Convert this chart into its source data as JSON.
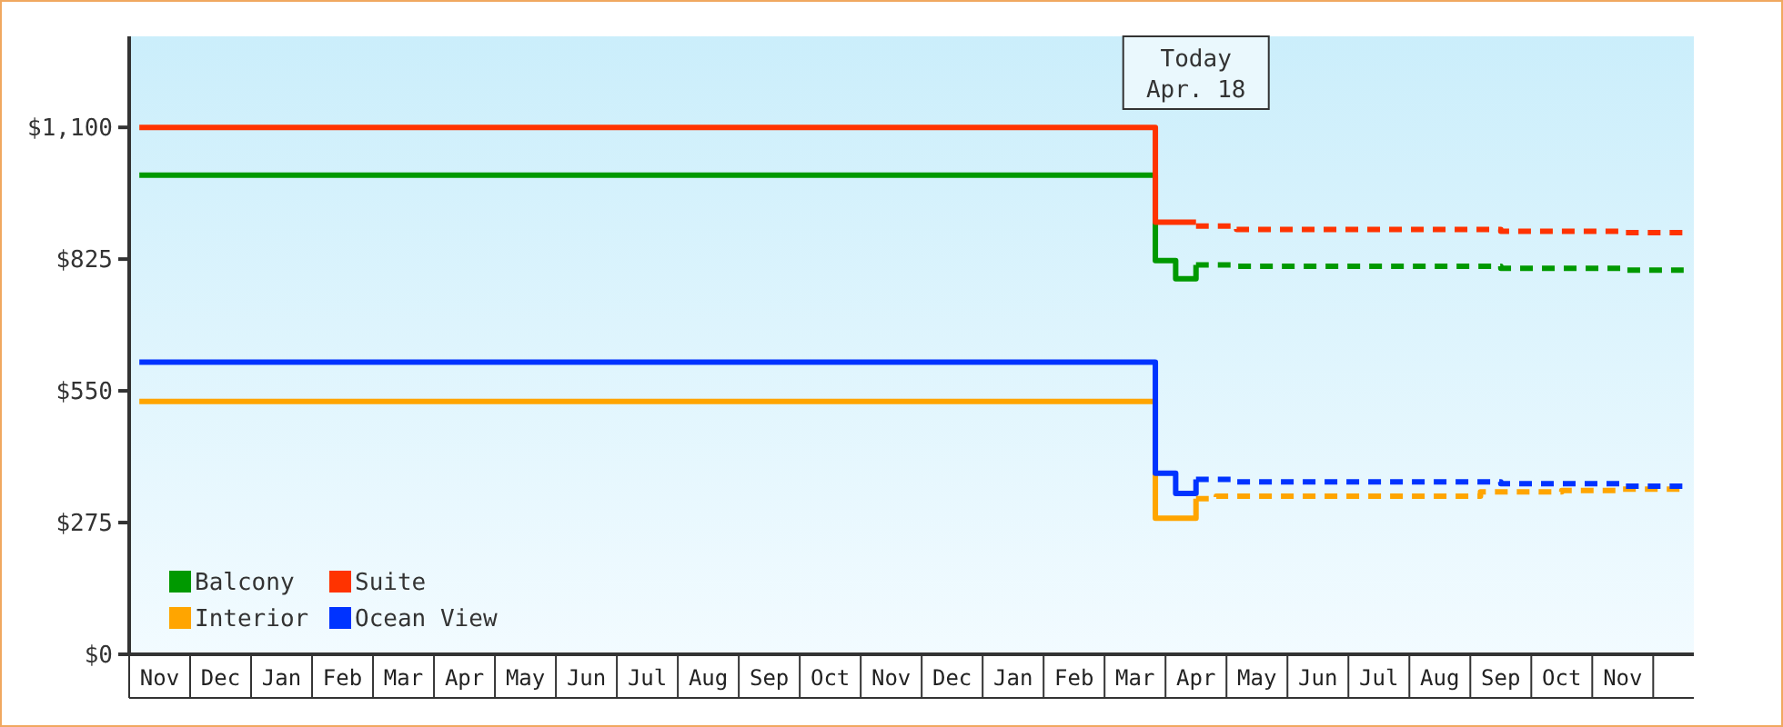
{
  "chart_data": {
    "type": "step",
    "ylim": [
      0,
      1290
    ],
    "yticks": [
      {
        "value": 0,
        "label": "$0"
      },
      {
        "value": 275,
        "label": "$275"
      },
      {
        "value": 550,
        "label": "$550"
      },
      {
        "value": 825,
        "label": "$825"
      },
      {
        "value": 1100,
        "label": "$1,100"
      }
    ],
    "categories": [
      null,
      "Nov",
      null,
      null,
      "Dec",
      null,
      null,
      "Jan",
      null,
      null,
      "Feb",
      null,
      null,
      "Mar",
      null,
      null,
      "Apr",
      null,
      null,
      "May",
      null,
      null,
      "Jun",
      null,
      null,
      "Jul",
      null,
      null,
      "Aug",
      null,
      null,
      "Sep",
      null,
      null,
      "Oct",
      null,
      null,
      "Nov",
      null,
      null,
      "Dec",
      null,
      null,
      "Jan",
      null,
      null,
      "Feb",
      null,
      null,
      "Mar",
      null,
      null,
      "Apr",
      null,
      null,
      "May",
      null,
      null,
      "Jun",
      null,
      null,
      "Jul",
      null,
      null,
      "Aug",
      null,
      null,
      "Sep",
      null,
      null,
      "Oct",
      null,
      null,
      "Nov",
      null,
      null,
      null
    ],
    "grid": false,
    "legend": "bottom left",
    "marker": "none",
    "line_style": "solid",
    "annotations": [
      "Today\nApr. 18"
    ],
    "series": [
      {
        "name": "Balcony",
        "color": "#009900",
        "values": [
          1000,
          1000,
          1000,
          1000,
          1000,
          1000,
          1000,
          1000,
          1000,
          1000,
          1000,
          1000,
          1000,
          1000,
          1000,
          1000,
          1000,
          1000,
          1000,
          1000,
          1000,
          1000,
          1000,
          1000,
          1000,
          1000,
          1000,
          1000,
          1000,
          1000,
          1000,
          1000,
          1000,
          1000,
          1000,
          1000,
          1000,
          1000,
          1000,
          1000,
          1000,
          1000,
          1000,
          1000,
          1000,
          1000,
          1000,
          1000,
          1000,
          1000,
          822,
          784,
          813,
          null,
          null,
          null,
          null,
          null,
          null,
          null,
          null,
          null,
          null,
          null,
          null,
          null,
          null,
          null,
          null,
          null,
          null,
          null,
          null,
          null,
          null,
          null,
          null
        ]
      },
      {
        "name": "Suite",
        "color": "#ff3300",
        "values": [
          1100,
          1100,
          1100,
          1100,
          1100,
          1100,
          1100,
          1100,
          1100,
          1100,
          1100,
          1100,
          1100,
          1100,
          1100,
          1100,
          1100,
          1100,
          1100,
          1100,
          1100,
          1100,
          1100,
          1100,
          1100,
          1100,
          1100,
          1100,
          1100,
          1100,
          1100,
          1100,
          1100,
          1100,
          1100,
          1100,
          1100,
          1100,
          1100,
          1100,
          1100,
          1100,
          1100,
          1100,
          1100,
          1100,
          1100,
          1100,
          1100,
          1100,
          902,
          902,
          902,
          null,
          null,
          null,
          null,
          null,
          null,
          null,
          null,
          null,
          null,
          null,
          null,
          null,
          null,
          null,
          null,
          null,
          null,
          null,
          null,
          null,
          null,
          null,
          null
        ]
      },
      {
        "name": "Interior",
        "color": "#ffa500",
        "values": [
          528,
          528,
          528,
          528,
          528,
          528,
          528,
          528,
          528,
          528,
          528,
          528,
          528,
          528,
          528,
          528,
          528,
          528,
          528,
          528,
          528,
          528,
          528,
          528,
          528,
          528,
          528,
          528,
          528,
          528,
          528,
          528,
          528,
          528,
          528,
          528,
          528,
          528,
          528,
          528,
          528,
          528,
          528,
          528,
          528,
          528,
          528,
          528,
          528,
          528,
          284,
          284,
          325,
          null,
          null,
          null,
          null,
          null,
          null,
          null,
          null,
          null,
          null,
          null,
          null,
          null,
          null,
          null,
          null,
          null,
          null,
          null,
          null,
          null,
          null,
          null,
          null
        ]
      },
      {
        "name": "Ocean View",
        "color": "#0033ff",
        "values": [
          610,
          610,
          610,
          610,
          610,
          610,
          610,
          610,
          610,
          610,
          610,
          610,
          610,
          610,
          610,
          610,
          610,
          610,
          610,
          610,
          610,
          610,
          610,
          610,
          610,
          610,
          610,
          610,
          610,
          610,
          610,
          610,
          610,
          610,
          610,
          610,
          610,
          610,
          610,
          610,
          610,
          610,
          610,
          610,
          610,
          610,
          610,
          610,
          610,
          610,
          378,
          336,
          365,
          null,
          null,
          null,
          null,
          null,
          null,
          null,
          null,
          null,
          null,
          null,
          null,
          null,
          null,
          null,
          null,
          null,
          null,
          null,
          null,
          null,
          null,
          null,
          null
        ]
      },
      {
        "color": "#009900",
        "marker": "none",
        "line_style": "dashed",
        "values": [
          null,
          null,
          null,
          null,
          null,
          null,
          null,
          null,
          null,
          null,
          null,
          null,
          null,
          null,
          null,
          null,
          null,
          null,
          null,
          null,
          null,
          null,
          null,
          null,
          null,
          null,
          null,
          null,
          null,
          null,
          null,
          null,
          null,
          null,
          null,
          null,
          null,
          null,
          null,
          null,
          null,
          null,
          null,
          null,
          null,
          null,
          null,
          null,
          null,
          null,
          null,
          null,
          813,
          813,
          810,
          810,
          810,
          810,
          810,
          810,
          810,
          810,
          810,
          810,
          810,
          810,
          810,
          806,
          806,
          806,
          806,
          806,
          806,
          802,
          802,
          802,
          802
        ]
      },
      {
        "color": "#ff3300",
        "marker": "none",
        "line_style": "dashed",
        "values": [
          null,
          null,
          null,
          null,
          null,
          null,
          null,
          null,
          null,
          null,
          null,
          null,
          null,
          null,
          null,
          null,
          null,
          null,
          null,
          null,
          null,
          null,
          null,
          null,
          null,
          null,
          null,
          null,
          null,
          null,
          null,
          null,
          null,
          null,
          null,
          null,
          null,
          null,
          null,
          null,
          null,
          null,
          null,
          null,
          null,
          null,
          null,
          null,
          null,
          null,
          null,
          null,
          894,
          894,
          887,
          887,
          887,
          887,
          887,
          887,
          887,
          887,
          887,
          887,
          887,
          887,
          887,
          883,
          883,
          883,
          883,
          883,
          883,
          880,
          880,
          880,
          880
        ]
      },
      {
        "color": "#ffa500",
        "marker": "none",
        "line_style": "dashed",
        "values": [
          null,
          null,
          null,
          null,
          null,
          null,
          null,
          null,
          null,
          null,
          null,
          null,
          null,
          null,
          null,
          null,
          null,
          null,
          null,
          null,
          null,
          null,
          null,
          null,
          null,
          null,
          null,
          null,
          null,
          null,
          null,
          null,
          null,
          null,
          null,
          null,
          null,
          null,
          null,
          null,
          null,
          null,
          null,
          null,
          null,
          null,
          null,
          null,
          null,
          null,
          null,
          null,
          325,
          330,
          330,
          330,
          330,
          330,
          330,
          330,
          330,
          330,
          330,
          330,
          330,
          330,
          339,
          339,
          339,
          339,
          342,
          342,
          342,
          345,
          345,
          345,
          345
        ]
      },
      {
        "color": "#0033ff",
        "marker": "none",
        "line_style": "dashed",
        "values": [
          null,
          null,
          null,
          null,
          null,
          null,
          null,
          null,
          null,
          null,
          null,
          null,
          null,
          null,
          null,
          null,
          null,
          null,
          null,
          null,
          null,
          null,
          null,
          null,
          null,
          null,
          null,
          null,
          null,
          null,
          null,
          null,
          null,
          null,
          null,
          null,
          null,
          null,
          null,
          null,
          null,
          null,
          null,
          null,
          null,
          null,
          null,
          null,
          null,
          null,
          null,
          null,
          365,
          365,
          360,
          360,
          360,
          360,
          360,
          360,
          360,
          360,
          360,
          360,
          360,
          360,
          360,
          356,
          356,
          356,
          356,
          356,
          356,
          351,
          351,
          351,
          351
        ]
      }
    ]
  }
}
